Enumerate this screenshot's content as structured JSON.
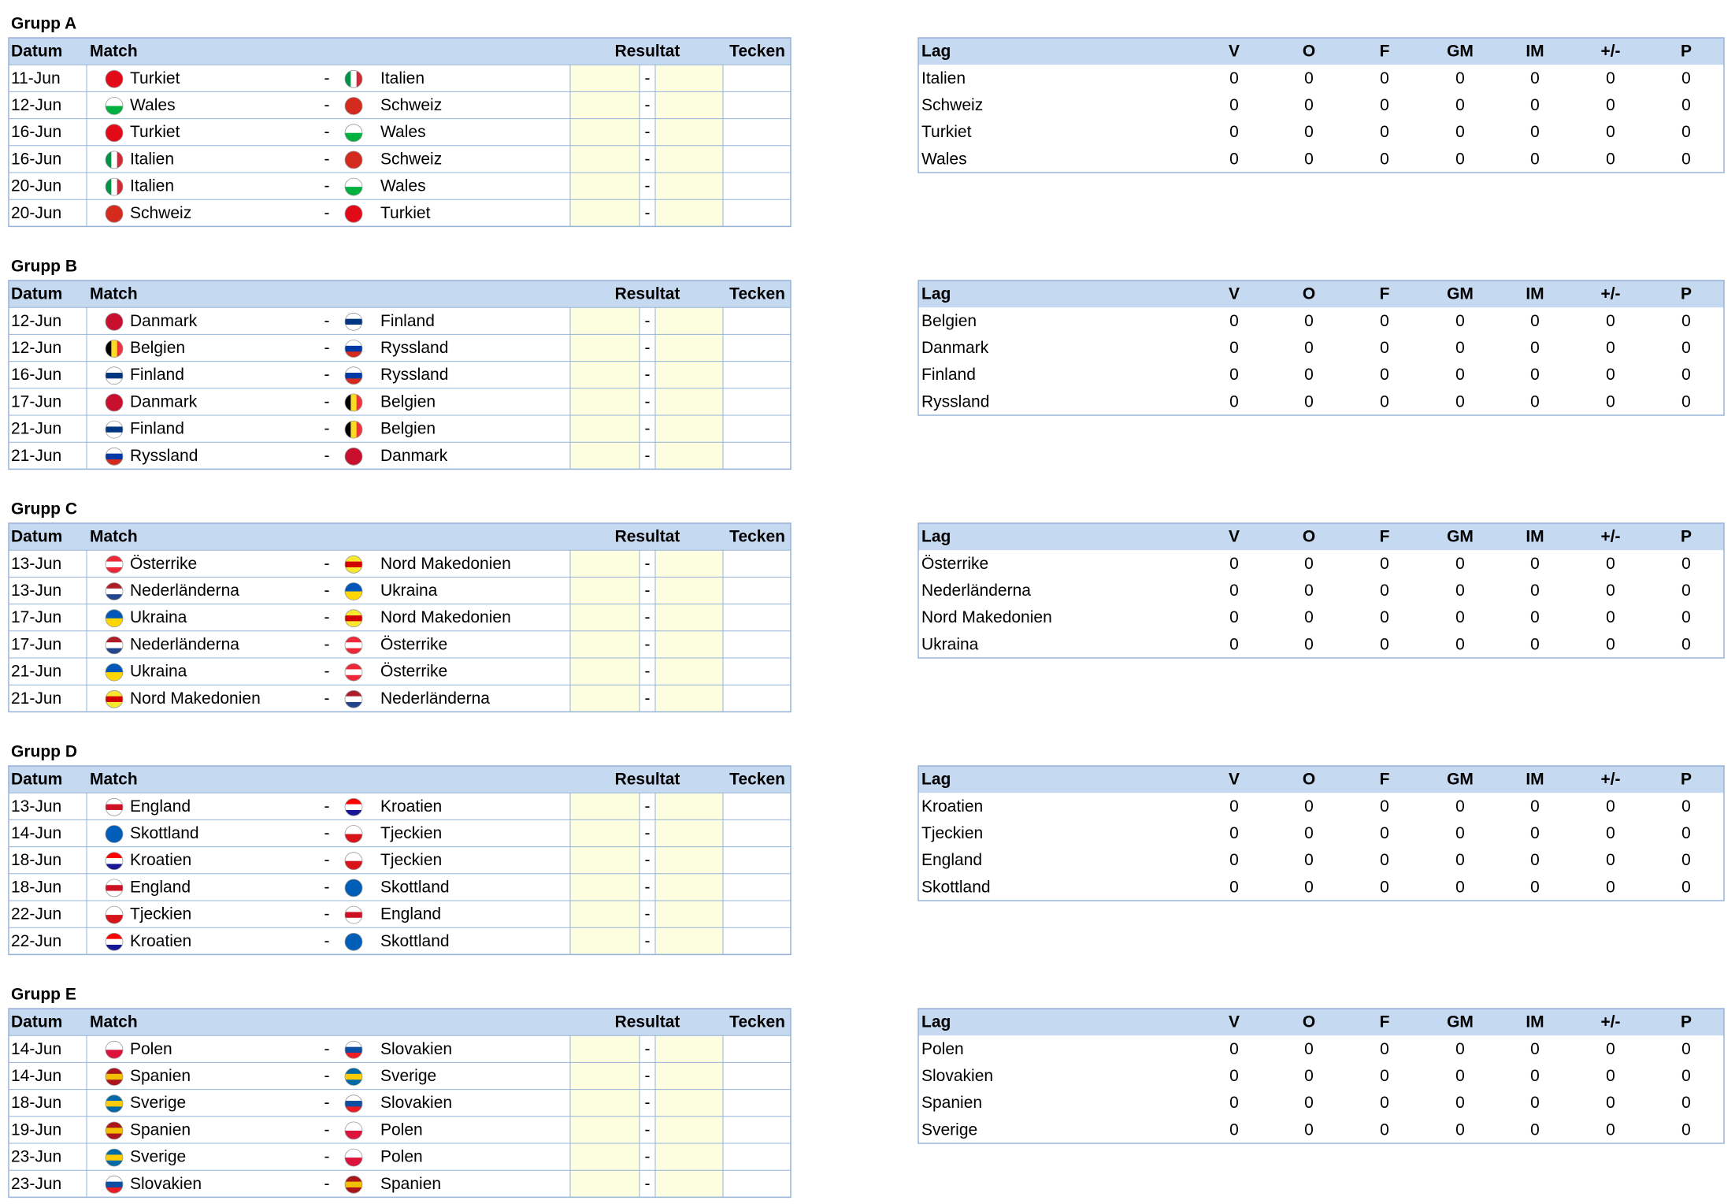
{
  "match_header": {
    "date": "Datum",
    "match": "Match",
    "result": "Resultat",
    "sign": "Tecken"
  },
  "table_header": {
    "team": "Lag",
    "columns": [
      "V",
      "O",
      "F",
      "GM",
      "IM",
      "+/-",
      "P"
    ]
  },
  "separator": "-",
  "groups": [
    {
      "title": "Grupp A",
      "matches": [
        {
          "date": "11-Jun",
          "home": "Turkiet",
          "away": "Italien"
        },
        {
          "date": "12-Jun",
          "home": "Wales",
          "away": "Schweiz"
        },
        {
          "date": "16-Jun",
          "home": "Turkiet",
          "away": "Wales"
        },
        {
          "date": "16-Jun",
          "home": "Italien",
          "away": "Schweiz"
        },
        {
          "date": "20-Jun",
          "home": "Italien",
          "away": "Wales"
        },
        {
          "date": "20-Jun",
          "home": "Schweiz",
          "away": "Turkiet"
        }
      ],
      "standings": [
        {
          "team": "Italien",
          "stats": [
            0,
            0,
            0,
            0,
            0,
            0,
            0
          ]
        },
        {
          "team": "Schweiz",
          "stats": [
            0,
            0,
            0,
            0,
            0,
            0,
            0
          ]
        },
        {
          "team": "Turkiet",
          "stats": [
            0,
            0,
            0,
            0,
            0,
            0,
            0
          ]
        },
        {
          "team": "Wales",
          "stats": [
            0,
            0,
            0,
            0,
            0,
            0,
            0
          ]
        }
      ]
    },
    {
      "title": "Grupp B",
      "matches": [
        {
          "date": "12-Jun",
          "home": "Danmark",
          "away": "Finland"
        },
        {
          "date": "12-Jun",
          "home": "Belgien",
          "away": "Ryssland"
        },
        {
          "date": "16-Jun",
          "home": "Finland",
          "away": "Ryssland"
        },
        {
          "date": "17-Jun",
          "home": "Danmark",
          "away": "Belgien"
        },
        {
          "date": "21-Jun",
          "home": "Finland",
          "away": "Belgien"
        },
        {
          "date": "21-Jun",
          "home": "Ryssland",
          "away": "Danmark"
        }
      ],
      "standings": [
        {
          "team": "Belgien",
          "stats": [
            0,
            0,
            0,
            0,
            0,
            0,
            0
          ]
        },
        {
          "team": "Danmark",
          "stats": [
            0,
            0,
            0,
            0,
            0,
            0,
            0
          ]
        },
        {
          "team": "Finland",
          "stats": [
            0,
            0,
            0,
            0,
            0,
            0,
            0
          ]
        },
        {
          "team": "Ryssland",
          "stats": [
            0,
            0,
            0,
            0,
            0,
            0,
            0
          ]
        }
      ]
    },
    {
      "title": "Grupp C",
      "matches": [
        {
          "date": "13-Jun",
          "home": "Österrike",
          "away": "Nord Makedonien"
        },
        {
          "date": "13-Jun",
          "home": "Nederländerna",
          "away": "Ukraina"
        },
        {
          "date": "17-Jun",
          "home": "Ukraina",
          "away": "Nord Makedonien"
        },
        {
          "date": "17-Jun",
          "home": "Nederländerna",
          "away": "Österrike"
        },
        {
          "date": "21-Jun",
          "home": "Ukraina",
          "away": "Österrike"
        },
        {
          "date": "21-Jun",
          "home": "Nord Makedonien",
          "away": "Nederländerna"
        }
      ],
      "standings": [
        {
          "team": "Österrike",
          "stats": [
            0,
            0,
            0,
            0,
            0,
            0,
            0
          ]
        },
        {
          "team": "Nederländerna",
          "stats": [
            0,
            0,
            0,
            0,
            0,
            0,
            0
          ]
        },
        {
          "team": "Nord Makedonien",
          "stats": [
            0,
            0,
            0,
            0,
            0,
            0,
            0
          ]
        },
        {
          "team": "Ukraina",
          "stats": [
            0,
            0,
            0,
            0,
            0,
            0,
            0
          ]
        }
      ]
    },
    {
      "title": "Grupp D",
      "matches": [
        {
          "date": "13-Jun",
          "home": "England",
          "away": "Kroatien"
        },
        {
          "date": "14-Jun",
          "home": "Skottland",
          "away": "Tjeckien"
        },
        {
          "date": "18-Jun",
          "home": "Kroatien",
          "away": "Tjeckien"
        },
        {
          "date": "18-Jun",
          "home": "England",
          "away": "Skottland"
        },
        {
          "date": "22-Jun",
          "home": "Tjeckien",
          "away": "England"
        },
        {
          "date": "22-Jun",
          "home": "Kroatien",
          "away": "Skottland"
        }
      ],
      "standings": [
        {
          "team": "Kroatien",
          "stats": [
            0,
            0,
            0,
            0,
            0,
            0,
            0
          ]
        },
        {
          "team": "Tjeckien",
          "stats": [
            0,
            0,
            0,
            0,
            0,
            0,
            0
          ]
        },
        {
          "team": "England",
          "stats": [
            0,
            0,
            0,
            0,
            0,
            0,
            0
          ]
        },
        {
          "team": "Skottland",
          "stats": [
            0,
            0,
            0,
            0,
            0,
            0,
            0
          ]
        }
      ]
    },
    {
      "title": "Grupp E",
      "matches": [
        {
          "date": "14-Jun",
          "home": "Polen",
          "away": "Slovakien"
        },
        {
          "date": "14-Jun",
          "home": "Spanien",
          "away": "Sverige"
        },
        {
          "date": "18-Jun",
          "home": "Sverige",
          "away": "Slovakien"
        },
        {
          "date": "19-Jun",
          "home": "Spanien",
          "away": "Polen"
        },
        {
          "date": "23-Jun",
          "home": "Sverige",
          "away": "Polen"
        },
        {
          "date": "23-Jun",
          "home": "Slovakien",
          "away": "Spanien"
        }
      ],
      "standings": [
        {
          "team": "Polen",
          "stats": [
            0,
            0,
            0,
            0,
            0,
            0,
            0
          ]
        },
        {
          "team": "Slovakien",
          "stats": [
            0,
            0,
            0,
            0,
            0,
            0,
            0
          ]
        },
        {
          "team": "Spanien",
          "stats": [
            0,
            0,
            0,
            0,
            0,
            0,
            0
          ]
        },
        {
          "team": "Sverige",
          "stats": [
            0,
            0,
            0,
            0,
            0,
            0,
            0
          ]
        }
      ]
    }
  ]
}
